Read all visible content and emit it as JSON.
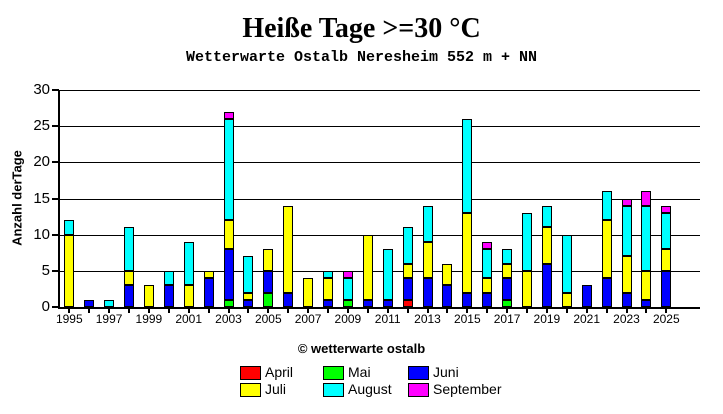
{
  "footer": "© wetterwarte ostalb",
  "chart_data": {
    "type": "stacked_bar",
    "title": "Heiße Tage >=30 °C",
    "subtitle": "Wetterwarte Ostalb Neresheim 552 m + NN",
    "ylabel": "Anzahl derTage",
    "xlabel": "",
    "ylim": [
      0,
      30
    ],
    "ytick_step": 5,
    "ytick_labels": [
      "0",
      "5",
      "10",
      "15",
      "20",
      "25",
      "30"
    ],
    "xtick_labels": [
      "1995",
      "1997",
      "1999",
      "2001",
      "2003",
      "2005",
      "2007",
      "2009",
      "2011",
      "2013",
      "2015",
      "2017",
      "2019",
      "2021",
      "2023",
      "2025"
    ],
    "grid": true,
    "legend_position": "bottom",
    "years": [
      1995,
      1996,
      1997,
      1998,
      1999,
      2000,
      2001,
      2002,
      2003,
      2004,
      2005,
      2006,
      2007,
      2008,
      2009,
      2010,
      2011,
      2012,
      2013,
      2014,
      2015,
      2016,
      2017,
      2018,
      2019,
      2020,
      2021,
      2022,
      2023,
      2024,
      2025
    ],
    "stack_order": [
      "April",
      "Mai",
      "Juni",
      "Juli",
      "August",
      "September"
    ],
    "legend_rows": [
      [
        "April",
        "Mai",
        "Juni"
      ],
      [
        "Juli",
        "August",
        "September"
      ]
    ],
    "series": [
      {
        "name": "April",
        "color": "#ff0000",
        "values": [
          0,
          0,
          0,
          0,
          0,
          0,
          0,
          0,
          0,
          0,
          0,
          0,
          0,
          0,
          0,
          0,
          0,
          1,
          0,
          0,
          0,
          0,
          0,
          0,
          0,
          0,
          0,
          0,
          0,
          0,
          0
        ]
      },
      {
        "name": "Mai",
        "color": "#00ff00",
        "values": [
          0,
          0,
          0,
          0,
          0,
          0,
          0,
          0,
          1,
          0,
          2,
          0,
          0,
          0,
          1,
          0,
          0,
          0,
          0,
          0,
          0,
          0,
          1,
          0,
          0,
          0,
          0,
          0,
          0,
          0,
          0
        ]
      },
      {
        "name": "Juni",
        "color": "#0000ff",
        "values": [
          0,
          1,
          0,
          3,
          0,
          3,
          0,
          4,
          7,
          1,
          3,
          2,
          0,
          1,
          0,
          1,
          1,
          3,
          4,
          3,
          2,
          2,
          3,
          0,
          6,
          0,
          3,
          4,
          2,
          1,
          5
        ]
      },
      {
        "name": "Juli",
        "color": "#ffff00",
        "values": [
          10,
          0,
          0,
          2,
          3,
          0,
          3,
          1,
          4,
          1,
          3,
          12,
          4,
          3,
          0,
          9,
          0,
          2,
          5,
          3,
          11,
          2,
          2,
          5,
          5,
          2,
          0,
          8,
          5,
          4,
          3
        ]
      },
      {
        "name": "August",
        "color": "#00ffff",
        "values": [
          2,
          0,
          1,
          6,
          0,
          2,
          6,
          0,
          14,
          5,
          0,
          0,
          0,
          1,
          3,
          0,
          7,
          5,
          5,
          0,
          13,
          4,
          2,
          8,
          3,
          8,
          0,
          4,
          7,
          9,
          5
        ]
      },
      {
        "name": "September",
        "color": "#ff00ff",
        "values": [
          0,
          0,
          0,
          0,
          0,
          0,
          0,
          0,
          1,
          0,
          0,
          0,
          0,
          0,
          1,
          0,
          0,
          0,
          0,
          0,
          0,
          1,
          0,
          0,
          0,
          0,
          0,
          0,
          1,
          2,
          1
        ]
      }
    ]
  }
}
